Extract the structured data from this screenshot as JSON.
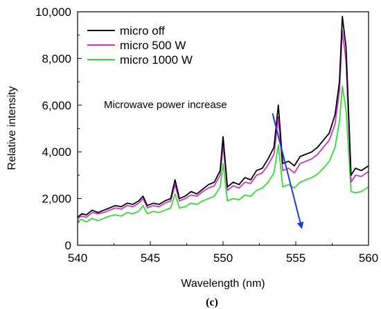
{
  "chart_data": {
    "type": "line",
    "title": "",
    "xlabel": "Wavelength (nm)",
    "ylabel": "Relative intensity",
    "xlim": [
      540,
      560
    ],
    "ylim": [
      0,
      10000
    ],
    "xticks": [
      540,
      545,
      550,
      555,
      560
    ],
    "xtick_labels": [
      "540",
      "545",
      "550",
      "555",
      "560"
    ],
    "yticks": [
      0,
      2000,
      4000,
      6000,
      8000,
      10000
    ],
    "ytick_labels": [
      "0",
      "2,000",
      "4,000",
      "6,000",
      "8,000",
      "10,000"
    ],
    "grid": false,
    "legend_position": "top-left",
    "caption": "(c)",
    "annotation": {
      "text": "Microwave power increase",
      "arrow_color": "#1a3fd6",
      "arrow_from": [
        553.4,
        5650
      ],
      "arrow_to": [
        555.4,
        750
      ]
    },
    "series": [
      {
        "name": "micro off",
        "color": "#000000",
        "x": [
          540.0,
          540.3,
          540.6,
          541.0,
          541.4,
          541.8,
          542.2,
          542.6,
          543.0,
          543.4,
          543.8,
          544.2,
          544.5,
          544.8,
          545.2,
          545.6,
          546.0,
          546.4,
          546.7,
          547.0,
          547.4,
          547.8,
          548.2,
          548.6,
          549.0,
          549.4,
          549.8,
          550.0,
          550.3,
          550.7,
          551.1,
          551.5,
          551.9,
          552.3,
          552.7,
          553.1,
          553.5,
          553.8,
          554.1,
          554.5,
          554.9,
          555.3,
          555.7,
          556.1,
          556.5,
          556.9,
          557.3,
          557.7,
          558.0,
          558.2,
          558.45,
          558.8,
          559.1,
          559.5,
          560.0
        ],
        "y": [
          1200,
          1350,
          1300,
          1500,
          1400,
          1500,
          1600,
          1700,
          1650,
          1800,
          1750,
          1900,
          2100,
          1700,
          1800,
          1750,
          1900,
          2000,
          2800,
          2000,
          2100,
          2300,
          2200,
          2400,
          2600,
          2700,
          3200,
          4650,
          2500,
          2700,
          2600,
          2900,
          2800,
          3200,
          3300,
          3700,
          4200,
          6000,
          3500,
          3600,
          3400,
          3800,
          3900,
          4000,
          4200,
          4500,
          4800,
          5600,
          7000,
          9800,
          8500,
          3000,
          3300,
          3200,
          3400
        ]
      },
      {
        "name": "micro 500 W",
        "color": "#cc33cc",
        "x": [
          540.0,
          540.3,
          540.6,
          541.0,
          541.4,
          541.8,
          542.2,
          542.6,
          543.0,
          543.4,
          543.8,
          544.2,
          544.5,
          544.8,
          545.2,
          545.6,
          546.0,
          546.4,
          546.7,
          547.0,
          547.4,
          547.8,
          548.2,
          548.6,
          549.0,
          549.4,
          549.8,
          550.0,
          550.3,
          550.7,
          551.1,
          551.5,
          551.9,
          552.3,
          552.7,
          553.1,
          553.5,
          553.8,
          554.1,
          554.5,
          554.9,
          555.3,
          555.7,
          556.1,
          556.5,
          556.9,
          557.3,
          557.7,
          558.0,
          558.2,
          558.45,
          558.8,
          559.1,
          559.5,
          560.0
        ],
        "y": [
          1150,
          1250,
          1200,
          1400,
          1350,
          1400,
          1500,
          1600,
          1550,
          1700,
          1650,
          1800,
          2000,
          1600,
          1700,
          1650,
          1800,
          1900,
          2600,
          1900,
          2000,
          2150,
          2100,
          2300,
          2450,
          2550,
          3000,
          4300,
          2350,
          2550,
          2450,
          2700,
          2650,
          3000,
          3100,
          3450,
          3900,
          5500,
          3200,
          3300,
          3100,
          3500,
          3600,
          3700,
          3900,
          4200,
          4500,
          5200,
          6600,
          9200,
          7900,
          2700,
          3000,
          2950,
          3150
        ]
      },
      {
        "name": "micro 1000 W",
        "color": "#33dd33",
        "x": [
          540.0,
          540.3,
          540.6,
          541.0,
          541.4,
          541.8,
          542.2,
          542.6,
          543.0,
          543.4,
          543.8,
          544.2,
          544.5,
          544.8,
          545.2,
          545.6,
          546.0,
          546.4,
          546.7,
          547.0,
          547.4,
          547.8,
          548.2,
          548.6,
          549.0,
          549.4,
          549.8,
          550.0,
          550.3,
          550.7,
          551.1,
          551.5,
          551.9,
          552.3,
          552.7,
          553.1,
          553.5,
          553.8,
          554.1,
          554.5,
          554.9,
          555.3,
          555.7,
          556.1,
          556.5,
          556.9,
          557.3,
          557.7,
          558.0,
          558.2,
          558.45,
          558.8,
          559.1,
          559.5,
          560.0
        ],
        "y": [
          1050,
          1100,
          1000,
          1150,
          1050,
          1150,
          1250,
          1300,
          1250,
          1400,
          1350,
          1450,
          1700,
          1350,
          1450,
          1400,
          1500,
          1600,
          2200,
          1600,
          1650,
          1800,
          1750,
          1900,
          2000,
          2100,
          2500,
          3500,
          1900,
          2000,
          1950,
          2150,
          2100,
          2350,
          2450,
          2700,
          3100,
          4300,
          2500,
          2600,
          2450,
          2700,
          2800,
          2900,
          3050,
          3300,
          3600,
          4200,
          5300,
          6800,
          5800,
          2300,
          2250,
          2300,
          2500
        ]
      }
    ]
  }
}
